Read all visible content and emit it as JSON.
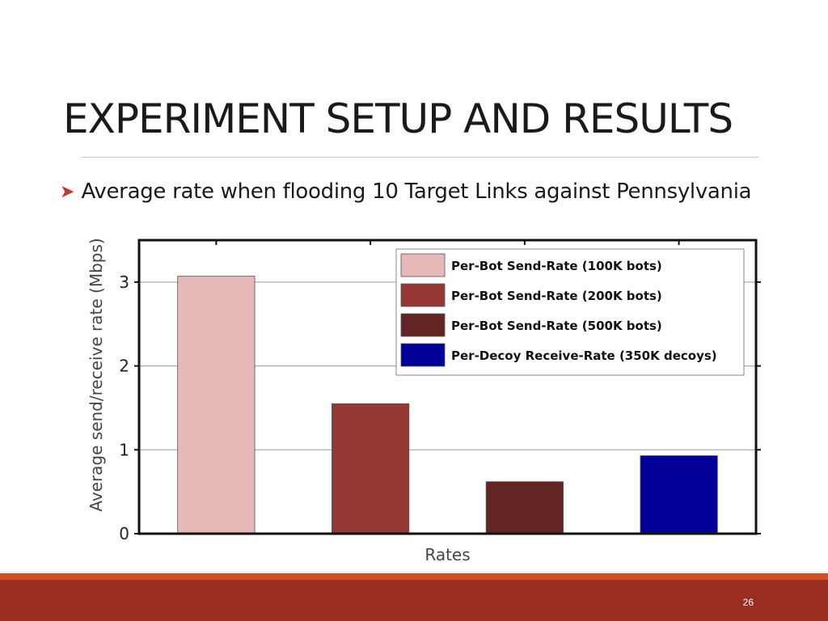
{
  "slide": {
    "title": "EXPERIMENT SETUP AND RESULTS",
    "bullet": "Average rate when flooding 10 Target Links against Pennsylvania",
    "page_number": "26"
  },
  "colors": {
    "accent_orange": "#d4511f",
    "footer_red": "#9a2d20",
    "bullet_arrow": "#c0392b"
  },
  "chart_data": {
    "type": "bar",
    "xlabel": "Rates",
    "ylabel": "Average send/receive rate (Mbps)",
    "ylim": [
      0,
      3.5
    ],
    "yticks": [
      0,
      1,
      2,
      3
    ],
    "grid": true,
    "legend_position": "top-right",
    "series": [
      {
        "name": "Per-Bot Send-Rate (100K bots)",
        "value": 3.07,
        "color": "#e6b8b7"
      },
      {
        "name": "Per-Bot Send-Rate (200K bots)",
        "value": 1.55,
        "color": "#953735"
      },
      {
        "name": "Per-Bot Send-Rate (500K bots)",
        "value": 0.62,
        "color": "#632523"
      },
      {
        "name": "Per-Decoy Receive-Rate (350K decoys)",
        "value": 0.93,
        "color": "#000099"
      }
    ]
  }
}
